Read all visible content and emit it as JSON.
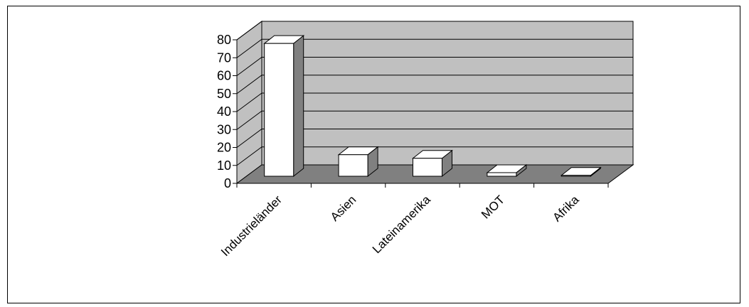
{
  "chart_data": {
    "type": "bar",
    "title": "",
    "xlabel": "",
    "ylabel": "",
    "categories": [
      "Industrieländer",
      "Asien",
      "Lateinamerika",
      "MOT",
      "Afrika"
    ],
    "values": [
      74,
      12,
      10,
      2,
      0.5
    ],
    "ylim": [
      0,
      80
    ],
    "yticks": [
      0,
      10,
      20,
      30,
      40,
      50,
      60,
      70,
      80
    ],
    "grid": true,
    "legend": "none",
    "style": "3d-column"
  },
  "colors": {
    "wall": "#c0c0c0",
    "floor": "#808080",
    "bar_front": "#ffffff",
    "bar_side": "#808080",
    "bar_top": "#ffffff",
    "lines": "#000000"
  }
}
